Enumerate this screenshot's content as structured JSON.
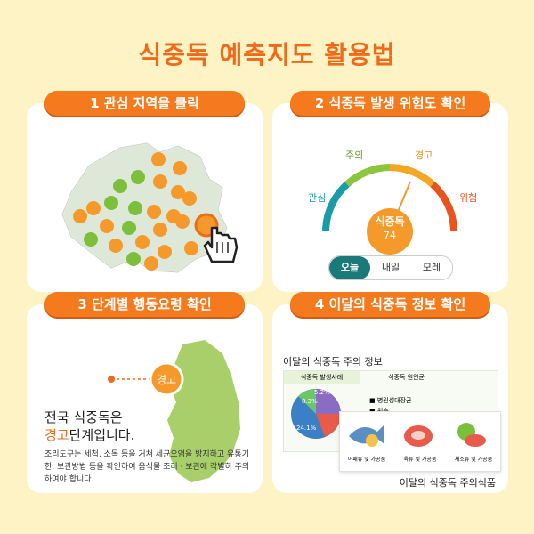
{
  "title": "식중독 예측지도 활용법",
  "card1": {
    "heading": "1 관심 지역을 클릭"
  },
  "card2": {
    "heading": "2 식중독 발생 위험도 확인",
    "levels": {
      "attention": "주의",
      "warning": "경고",
      "interest": "관심",
      "danger": "위험"
    },
    "center_label": "식중독",
    "index_value": "74",
    "tabs": [
      "오늘",
      "내일",
      "모레"
    ]
  },
  "card3": {
    "heading": "3 단계별 행동요령 확인",
    "badge": "경고",
    "line1": "전국 식중독은",
    "level_word": "경고",
    "line2_rest": "단계입니다.",
    "advice": "조리도구는 세척, 소독 등을 거쳐 세균오염을 방지하고 유통기한, 보관방법 등을 확인하여 음식물 조리 · 보관에 각별히 주의하여야 합니다."
  },
  "card4": {
    "heading": "4 이달의 식중독 정보 확인",
    "top_label": "이달의 식중독 주의 정보",
    "table_tabs": [
      "식중독 발생사례",
      "식중독 원인균"
    ],
    "pie_labels": [
      "24.1%",
      "8.3%",
      "5.2%"
    ],
    "legend": [
      "병원성대장균",
      "원충"
    ],
    "food_captions": [
      "어패류 및 가공품",
      "육류 및 가공품",
      "채소류 및 가공품"
    ],
    "bottom_label": "이달의 식중독 주의식품"
  }
}
